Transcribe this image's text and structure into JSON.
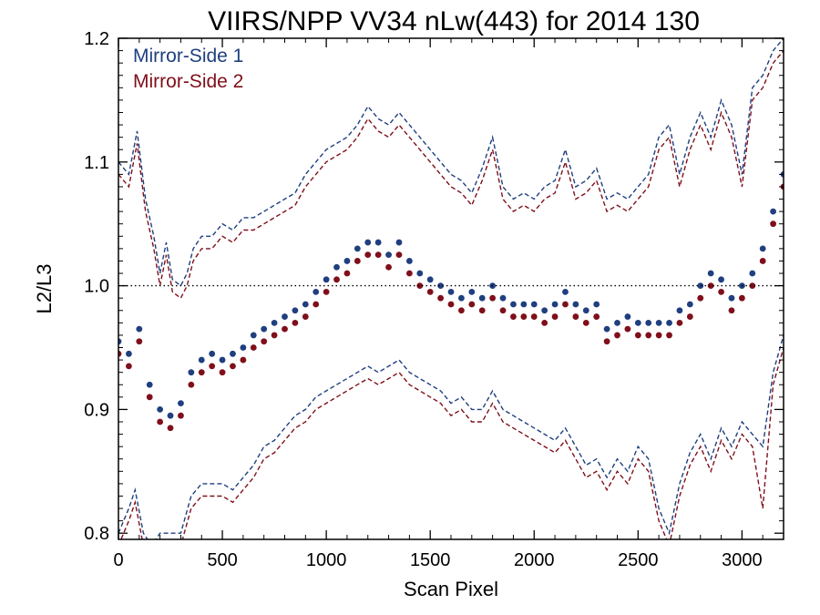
{
  "chart_data": {
    "type": "scatter",
    "title": "VIIRS/NPP VV34 nLw(443) for 2014 130",
    "xlabel": "Scan Pixel",
    "ylabel": "L2/L3",
    "xlim": [
      0,
      3200
    ],
    "ylim": [
      0.795,
      1.2
    ],
    "xticks": [
      0,
      500,
      1000,
      1500,
      2000,
      2500,
      3000
    ],
    "xtick_labels": [
      "0",
      "500",
      "1000",
      "1500",
      "2000",
      "2500",
      "3000"
    ],
    "yticks": [
      0.8,
      0.9,
      1.0,
      1.1,
      1.2
    ],
    "ytick_labels": [
      "0.8",
      "0.9",
      "1.0",
      "1.1",
      "1.2"
    ],
    "reference_line": 1.0,
    "grid": false,
    "legend_position": "top-left",
    "colors": {
      "ms1": "#1f3f7f",
      "ms2": "#7f0f1a"
    },
    "series": [
      {
        "name": "Mirror-Side 1",
        "color": "#1f3f7f",
        "style": "points",
        "x": [
          0,
          50,
          100,
          150,
          200,
          250,
          300,
          350,
          400,
          450,
          500,
          550,
          600,
          650,
          700,
          750,
          800,
          850,
          900,
          950,
          1000,
          1050,
          1100,
          1150,
          1200,
          1250,
          1300,
          1350,
          1400,
          1450,
          1500,
          1550,
          1600,
          1650,
          1700,
          1750,
          1800,
          1850,
          1900,
          1950,
          2000,
          2050,
          2100,
          2150,
          2200,
          2250,
          2300,
          2350,
          2400,
          2450,
          2500,
          2550,
          2600,
          2650,
          2700,
          2750,
          2800,
          2850,
          2900,
          2950,
          3000,
          3050,
          3100,
          3150,
          3200
        ],
        "y": [
          0.955,
          0.945,
          0.965,
          0.92,
          0.9,
          0.895,
          0.905,
          0.93,
          0.94,
          0.945,
          0.94,
          0.945,
          0.95,
          0.96,
          0.965,
          0.97,
          0.975,
          0.98,
          0.985,
          0.995,
          1.005,
          1.015,
          1.02,
          1.03,
          1.035,
          1.035,
          1.025,
          1.035,
          1.02,
          1.01,
          1.005,
          1.0,
          0.995,
          0.99,
          0.995,
          0.99,
          1.0,
          0.99,
          0.985,
          0.985,
          0.985,
          0.98,
          0.985,
          0.995,
          0.985,
          0.98,
          0.985,
          0.965,
          0.97,
          0.975,
          0.97,
          0.97,
          0.97,
          0.97,
          0.98,
          0.985,
          1.0,
          1.01,
          1.005,
          0.99,
          1.0,
          1.01,
          1.03,
          1.06,
          1.09
        ]
      },
      {
        "name": "Mirror-Side 2",
        "color": "#7f0f1a",
        "style": "points",
        "x": [
          0,
          50,
          100,
          150,
          200,
          250,
          300,
          350,
          400,
          450,
          500,
          550,
          600,
          650,
          700,
          750,
          800,
          850,
          900,
          950,
          1000,
          1050,
          1100,
          1150,
          1200,
          1250,
          1300,
          1350,
          1400,
          1450,
          1500,
          1550,
          1600,
          1650,
          1700,
          1750,
          1800,
          1850,
          1900,
          1950,
          2000,
          2050,
          2100,
          2150,
          2200,
          2250,
          2300,
          2350,
          2400,
          2450,
          2500,
          2550,
          2600,
          2650,
          2700,
          2750,
          2800,
          2850,
          2900,
          2950,
          3000,
          3050,
          3100,
          3150,
          3200
        ],
        "y": [
          0.945,
          0.935,
          0.955,
          0.91,
          0.89,
          0.885,
          0.895,
          0.92,
          0.93,
          0.935,
          0.93,
          0.935,
          0.94,
          0.95,
          0.955,
          0.96,
          0.965,
          0.97,
          0.975,
          0.985,
          0.995,
          1.005,
          1.01,
          1.02,
          1.025,
          1.025,
          1.015,
          1.025,
          1.01,
          1.0,
          0.995,
          0.99,
          0.985,
          0.98,
          0.985,
          0.98,
          0.99,
          0.98,
          0.975,
          0.975,
          0.975,
          0.97,
          0.975,
          0.985,
          0.975,
          0.97,
          0.975,
          0.955,
          0.96,
          0.965,
          0.96,
          0.96,
          0.96,
          0.96,
          0.97,
          0.975,
          0.99,
          1.0,
          0.995,
          0.98,
          0.99,
          1.0,
          1.02,
          1.05,
          1.08
        ]
      },
      {
        "name": "Mirror-Side 1 upper",
        "color": "#1f3f7f",
        "style": "dashed",
        "x": [
          0,
          50,
          90,
          130,
          170,
          200,
          230,
          260,
          300,
          330,
          360,
          400,
          450,
          500,
          550,
          600,
          650,
          700,
          750,
          800,
          850,
          900,
          950,
          1000,
          1050,
          1100,
          1150,
          1200,
          1250,
          1300,
          1350,
          1400,
          1450,
          1500,
          1550,
          1600,
          1650,
          1700,
          1750,
          1800,
          1850,
          1900,
          1950,
          2000,
          2050,
          2100,
          2150,
          2200,
          2250,
          2300,
          2350,
          2400,
          2450,
          2500,
          2550,
          2600,
          2650,
          2700,
          2750,
          2800,
          2850,
          2900,
          2950,
          3000,
          3050,
          3100,
          3150,
          3200
        ],
        "y": [
          1.1,
          1.09,
          1.125,
          1.07,
          1.04,
          1.01,
          1.035,
          1.005,
          1.0,
          1.01,
          1.03,
          1.04,
          1.04,
          1.05,
          1.045,
          1.055,
          1.055,
          1.06,
          1.065,
          1.07,
          1.075,
          1.09,
          1.1,
          1.11,
          1.115,
          1.12,
          1.13,
          1.145,
          1.135,
          1.13,
          1.14,
          1.13,
          1.12,
          1.11,
          1.1,
          1.09,
          1.085,
          1.075,
          1.095,
          1.12,
          1.08,
          1.07,
          1.075,
          1.07,
          1.08,
          1.085,
          1.11,
          1.08,
          1.085,
          1.095,
          1.07,
          1.075,
          1.07,
          1.08,
          1.09,
          1.12,
          1.13,
          1.09,
          1.12,
          1.14,
          1.12,
          1.15,
          1.13,
          1.09,
          1.16,
          1.17,
          1.19,
          1.2
        ]
      },
      {
        "name": "Mirror-Side 2 upper",
        "color": "#7f0f1a",
        "style": "dashed",
        "x": [
          0,
          50,
          90,
          130,
          170,
          200,
          230,
          260,
          300,
          330,
          360,
          400,
          450,
          500,
          550,
          600,
          650,
          700,
          750,
          800,
          850,
          900,
          950,
          1000,
          1050,
          1100,
          1150,
          1200,
          1250,
          1300,
          1350,
          1400,
          1450,
          1500,
          1550,
          1600,
          1650,
          1700,
          1750,
          1800,
          1850,
          1900,
          1950,
          2000,
          2050,
          2100,
          2150,
          2200,
          2250,
          2300,
          2350,
          2400,
          2450,
          2500,
          2550,
          2600,
          2650,
          2700,
          2750,
          2800,
          2850,
          2900,
          2950,
          3000,
          3050,
          3100,
          3150,
          3200
        ],
        "y": [
          1.09,
          1.08,
          1.115,
          1.06,
          1.03,
          1.0,
          1.025,
          0.995,
          0.99,
          1.0,
          1.02,
          1.03,
          1.03,
          1.04,
          1.035,
          1.045,
          1.045,
          1.05,
          1.055,
          1.06,
          1.065,
          1.08,
          1.09,
          1.1,
          1.105,
          1.11,
          1.12,
          1.135,
          1.125,
          1.12,
          1.13,
          1.12,
          1.11,
          1.1,
          1.09,
          1.08,
          1.075,
          1.065,
          1.085,
          1.11,
          1.07,
          1.06,
          1.065,
          1.06,
          1.07,
          1.075,
          1.1,
          1.07,
          1.075,
          1.085,
          1.06,
          1.065,
          1.06,
          1.07,
          1.08,
          1.11,
          1.12,
          1.08,
          1.11,
          1.13,
          1.11,
          1.14,
          1.12,
          1.08,
          1.15,
          1.16,
          1.18,
          1.19
        ]
      },
      {
        "name": "Mirror-Side 1 lower",
        "color": "#1f3f7f",
        "style": "dashed",
        "x": [
          0,
          50,
          80,
          120,
          160,
          200,
          250,
          300,
          350,
          400,
          450,
          500,
          550,
          600,
          650,
          700,
          750,
          800,
          850,
          900,
          950,
          1000,
          1050,
          1100,
          1150,
          1200,
          1250,
          1300,
          1350,
          1400,
          1450,
          1500,
          1550,
          1600,
          1650,
          1700,
          1750,
          1800,
          1850,
          1900,
          1950,
          2000,
          2050,
          2100,
          2150,
          2200,
          2250,
          2300,
          2350,
          2400,
          2450,
          2500,
          2550,
          2600,
          2650,
          2700,
          2750,
          2800,
          2850,
          2900,
          2950,
          3000,
          3050,
          3100,
          3150,
          3200
        ],
        "y": [
          0.8,
          0.82,
          0.835,
          0.8,
          0.79,
          0.8,
          0.8,
          0.8,
          0.83,
          0.84,
          0.84,
          0.84,
          0.835,
          0.845,
          0.855,
          0.87,
          0.875,
          0.885,
          0.895,
          0.9,
          0.91,
          0.915,
          0.92,
          0.925,
          0.93,
          0.935,
          0.93,
          0.935,
          0.94,
          0.93,
          0.925,
          0.92,
          0.915,
          0.905,
          0.91,
          0.9,
          0.9,
          0.915,
          0.9,
          0.895,
          0.89,
          0.885,
          0.88,
          0.875,
          0.885,
          0.87,
          0.855,
          0.86,
          0.845,
          0.86,
          0.85,
          0.87,
          0.86,
          0.82,
          0.8,
          0.84,
          0.865,
          0.88,
          0.86,
          0.885,
          0.87,
          0.89,
          0.88,
          0.87,
          0.93,
          0.96
        ]
      },
      {
        "name": "Mirror-Side 2 lower",
        "color": "#7f0f1a",
        "style": "dashed",
        "x": [
          0,
          50,
          80,
          120,
          160,
          200,
          250,
          300,
          350,
          400,
          450,
          500,
          550,
          600,
          650,
          700,
          750,
          800,
          850,
          900,
          950,
          1000,
          1050,
          1100,
          1150,
          1200,
          1250,
          1300,
          1350,
          1400,
          1450,
          1500,
          1550,
          1600,
          1650,
          1700,
          1750,
          1800,
          1850,
          1900,
          1950,
          2000,
          2050,
          2100,
          2150,
          2200,
          2250,
          2300,
          2350,
          2400,
          2450,
          2500,
          2550,
          2600,
          2650,
          2700,
          2750,
          2800,
          2850,
          2900,
          2950,
          3000,
          3050,
          3100,
          3150,
          3200
        ],
        "y": [
          0.79,
          0.81,
          0.825,
          0.79,
          0.78,
          0.79,
          0.79,
          0.79,
          0.82,
          0.83,
          0.83,
          0.83,
          0.825,
          0.835,
          0.845,
          0.86,
          0.865,
          0.875,
          0.885,
          0.89,
          0.9,
          0.905,
          0.91,
          0.915,
          0.92,
          0.925,
          0.92,
          0.925,
          0.93,
          0.92,
          0.915,
          0.91,
          0.905,
          0.895,
          0.9,
          0.89,
          0.89,
          0.905,
          0.89,
          0.885,
          0.88,
          0.875,
          0.87,
          0.865,
          0.875,
          0.86,
          0.845,
          0.85,
          0.835,
          0.85,
          0.84,
          0.86,
          0.85,
          0.81,
          0.79,
          0.83,
          0.855,
          0.87,
          0.85,
          0.875,
          0.86,
          0.88,
          0.87,
          0.82,
          0.92,
          0.95
        ]
      }
    ]
  }
}
